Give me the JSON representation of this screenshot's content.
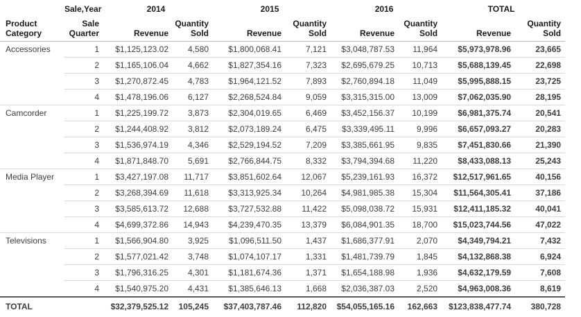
{
  "chart_data": {
    "type": "table",
    "corner_label": "Sale,Year",
    "row_axis": [
      "Product Category",
      "Sale Quarter"
    ],
    "col_axis_years": [
      "2014",
      "2015",
      "2016",
      "TOTAL"
    ],
    "measures": [
      "Revenue",
      "Quantity Sold"
    ],
    "value_columns": [
      "2014 Revenue",
      "2014 Quantity Sold",
      "2015 Revenue",
      "2015 Quantity Sold",
      "2016 Revenue",
      "2016 Quantity Sold",
      "TOTAL Revenue",
      "TOTAL Quantity Sold"
    ],
    "categories": [
      {
        "name": "Accessories",
        "quarters": [
          {
            "quarter": "1",
            "values": [
              "$1,125,123.02",
              "4,580",
              "$1,800,068.41",
              "7,121",
              "$3,048,787.53",
              "11,964",
              "$5,973,978.96",
              "23,665"
            ]
          },
          {
            "quarter": "2",
            "values": [
              "$1,165,106.04",
              "4,662",
              "$1,827,354.16",
              "7,323",
              "$2,695,679.25",
              "10,713",
              "$5,688,139.45",
              "22,698"
            ]
          },
          {
            "quarter": "3",
            "values": [
              "$1,270,872.45",
              "4,783",
              "$1,964,121.52",
              "7,893",
              "$2,760,894.18",
              "11,049",
              "$5,995,888.15",
              "23,725"
            ]
          },
          {
            "quarter": "4",
            "values": [
              "$1,478,196.06",
              "6,127",
              "$2,268,524.84",
              "9,059",
              "$3,315,315.00",
              "13,009",
              "$7,062,035.90",
              "28,195"
            ]
          }
        ]
      },
      {
        "name": "Camcorder",
        "quarters": [
          {
            "quarter": "1",
            "values": [
              "$1,225,199.72",
              "3,873",
              "$2,304,019.65",
              "6,469",
              "$3,452,156.37",
              "10,199",
              "$6,981,375.74",
              "20,541"
            ]
          },
          {
            "quarter": "2",
            "values": [
              "$1,244,408.92",
              "3,812",
              "$2,073,189.24",
              "6,475",
              "$3,339,495.11",
              "9,996",
              "$6,657,093.27",
              "20,283"
            ]
          },
          {
            "quarter": "3",
            "values": [
              "$1,536,974.19",
              "4,346",
              "$2,529,194.52",
              "7,209",
              "$3,385,661.95",
              "9,835",
              "$7,451,830.66",
              "21,390"
            ]
          },
          {
            "quarter": "4",
            "values": [
              "$1,871,848.70",
              "5,691",
              "$2,766,844.75",
              "8,332",
              "$3,794,394.68",
              "11,220",
              "$8,433,088.13",
              "25,243"
            ]
          }
        ]
      },
      {
        "name": "Media Player",
        "quarters": [
          {
            "quarter": "1",
            "values": [
              "$3,427,197.08",
              "11,717",
              "$3,851,602.64",
              "12,067",
              "$5,239,161.93",
              "16,372",
              "$12,517,961.65",
              "40,156"
            ]
          },
          {
            "quarter": "2",
            "values": [
              "$3,268,394.69",
              "11,618",
              "$3,313,925.34",
              "10,264",
              "$4,981,985.38",
              "15,304",
              "$11,564,305.41",
              "37,186"
            ]
          },
          {
            "quarter": "3",
            "values": [
              "$3,585,613.72",
              "12,688",
              "$3,727,532.88",
              "11,422",
              "$5,098,038.72",
              "15,931",
              "$12,411,185.32",
              "40,041"
            ]
          },
          {
            "quarter": "4",
            "values": [
              "$4,699,372.86",
              "14,943",
              "$4,239,470.35",
              "13,379",
              "$6,084,901.35",
              "18,700",
              "$15,023,744.56",
              "47,022"
            ]
          }
        ]
      },
      {
        "name": "Televisions",
        "quarters": [
          {
            "quarter": "1",
            "values": [
              "$1,566,904.80",
              "3,925",
              "$1,096,511.50",
              "1,437",
              "$1,686,377.91",
              "2,070",
              "$4,349,794.21",
              "7,432"
            ]
          },
          {
            "quarter": "2",
            "values": [
              "$1,577,021.42",
              "3,748",
              "$1,074,107.17",
              "1,331",
              "$1,481,739.79",
              "1,845",
              "$4,132,868.38",
              "6,924"
            ]
          },
          {
            "quarter": "3",
            "values": [
              "$1,796,316.25",
              "4,301",
              "$1,181,674.36",
              "1,371",
              "$1,654,188.98",
              "1,936",
              "$4,632,179.59",
              "7,608"
            ]
          },
          {
            "quarter": "4",
            "values": [
              "$1,540,975.20",
              "4,431",
              "$1,385,646.13",
              "1,668",
              "$2,036,387.03",
              "2,520",
              "$4,963,008.36",
              "8,619"
            ]
          }
        ]
      }
    ],
    "grand_total": {
      "label": "TOTAL",
      "values": [
        "$32,379,525.12",
        "105,245",
        "$37,403,787.46",
        "112,820",
        "$54,055,165.16",
        "162,663",
        "$123,838,477.74",
        "380,728"
      ]
    }
  },
  "colors": {
    "text": "#3d3d3d",
    "header_text": "#1a1a1a",
    "row_border": "#d9d9d9",
    "header_border": "#b0b9c0",
    "total_border": "#5a5a5a",
    "background": "#ffffff"
  }
}
